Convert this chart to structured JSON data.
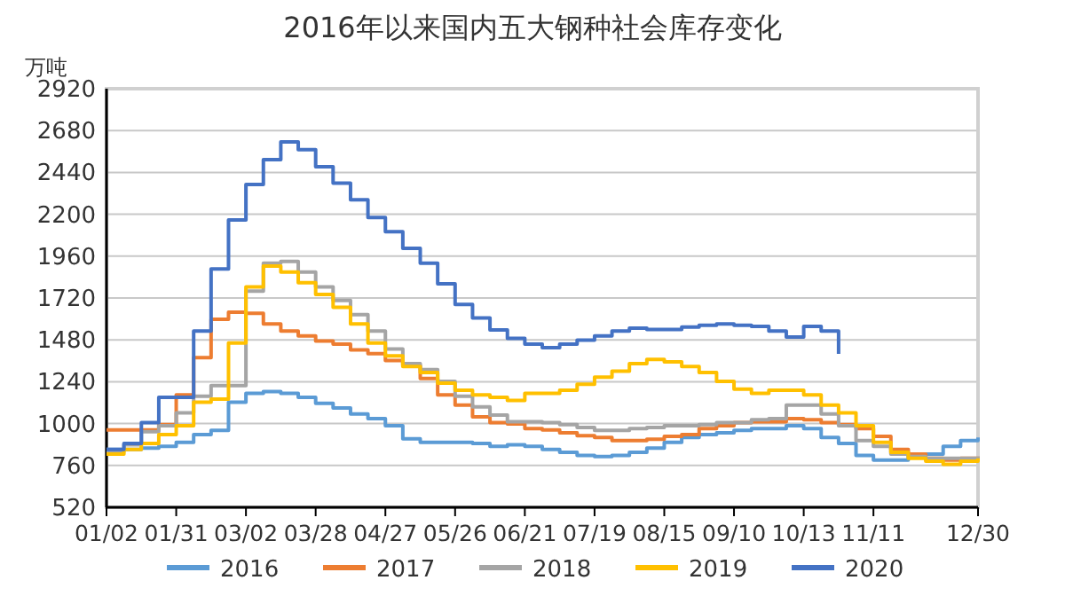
{
  "chart_data": {
    "type": "step",
    "title": "2016年以来国内五大钢种社会库存变化",
    "ylabel": "万吨",
    "categories": [
      "01/02",
      null,
      null,
      null,
      "01/31",
      null,
      null,
      null,
      "03/02",
      null,
      null,
      null,
      "03/28",
      null,
      null,
      null,
      "04/27",
      null,
      null,
      null,
      "05/26",
      null,
      null,
      null,
      "06/21",
      null,
      null,
      null,
      "07/19",
      null,
      null,
      null,
      "08/15",
      null,
      null,
      null,
      "09/10",
      null,
      null,
      null,
      "10/13",
      null,
      null,
      null,
      "11/11",
      null,
      null,
      null,
      null,
      null,
      "12/30"
    ],
    "ylim": [
      520,
      2920
    ],
    "yticks": [
      520,
      760,
      1000,
      1240,
      1480,
      1720,
      1960,
      2200,
      2440,
      2680,
      2920
    ],
    "grid": "y",
    "legend": "bottom",
    "series": [
      {
        "name": "2016",
        "color": "#5b9bd5",
        "values": [
          852,
          852,
          859,
          869,
          893,
          937,
          961,
          1123,
          1174,
          1184,
          1174,
          1150,
          1116,
          1089,
          1055,
          1028,
          988,
          913,
          893,
          893,
          893,
          886,
          869,
          879,
          869,
          852,
          835,
          818,
          811,
          818,
          835,
          859,
          893,
          920,
          937,
          947,
          961,
          971,
          971,
          988,
          971,
          920,
          886,
          818,
          791,
          791,
          811,
          825,
          869,
          903,
          920
        ]
      },
      {
        "name": "2017",
        "color": "#ed7d31",
        "values": [
          964,
          964,
          964,
          994,
          1164,
          1378,
          1598,
          1639,
          1632,
          1571,
          1530,
          1503,
          1473,
          1456,
          1422,
          1401,
          1361,
          1334,
          1259,
          1164,
          1106,
          1039,
          1005,
          998,
          971,
          964,
          947,
          930,
          920,
          903,
          903,
          910,
          927,
          937,
          971,
          988,
          1005,
          1011,
          1011,
          1028,
          1022,
          1005,
          994,
          971,
          927,
          852,
          825,
          801,
          791,
          801,
          811
        ]
      },
      {
        "name": "2018",
        "color": "#a5a5a5",
        "values": [
          840,
          879,
          954,
          988,
          1062,
          1157,
          1218,
          1218,
          1760,
          1920,
          1930,
          1869,
          1784,
          1706,
          1625,
          1530,
          1428,
          1344,
          1310,
          1242,
          1157,
          1096,
          1049,
          1011,
          1011,
          1005,
          994,
          977,
          961,
          961,
          971,
          977,
          988,
          988,
          994,
          1005,
          1005,
          1022,
          1028,
          1106,
          1106,
          1055,
          988,
          903,
          869,
          825,
          811,
          801,
          801,
          801,
          811
        ]
      },
      {
        "name": "2019",
        "color": "#ffc000",
        "values": [
          825,
          852,
          886,
          937,
          988,
          1123,
          1140,
          1462,
          1784,
          1903,
          1869,
          1808,
          1740,
          1666,
          1571,
          1462,
          1388,
          1327,
          1293,
          1232,
          1191,
          1164,
          1150,
          1133,
          1174,
          1174,
          1191,
          1225,
          1266,
          1300,
          1344,
          1368,
          1354,
          1327,
          1293,
          1242,
          1198,
          1174,
          1191,
          1191,
          1164,
          1106,
          1062,
          988,
          893,
          835,
          801,
          784,
          767,
          784,
          801
        ]
      },
      {
        "name": "2020",
        "color": "#4472c4",
        "values": [
          852,
          886,
          1005,
          1150,
          1150,
          1530,
          1886,
          2167,
          2371,
          2513,
          2615,
          2571,
          2473,
          2378,
          2283,
          2181,
          2100,
          2005,
          1920,
          1801,
          1683,
          1605,
          1537,
          1489,
          1456,
          1435,
          1456,
          1479,
          1503,
          1530,
          1547,
          1540,
          1540,
          1554,
          1564,
          1571,
          1564,
          1557,
          1530,
          1496,
          1557,
          1530,
          1400,
          null,
          null,
          null,
          null,
          null,
          null,
          null,
          null
        ]
      }
    ]
  }
}
